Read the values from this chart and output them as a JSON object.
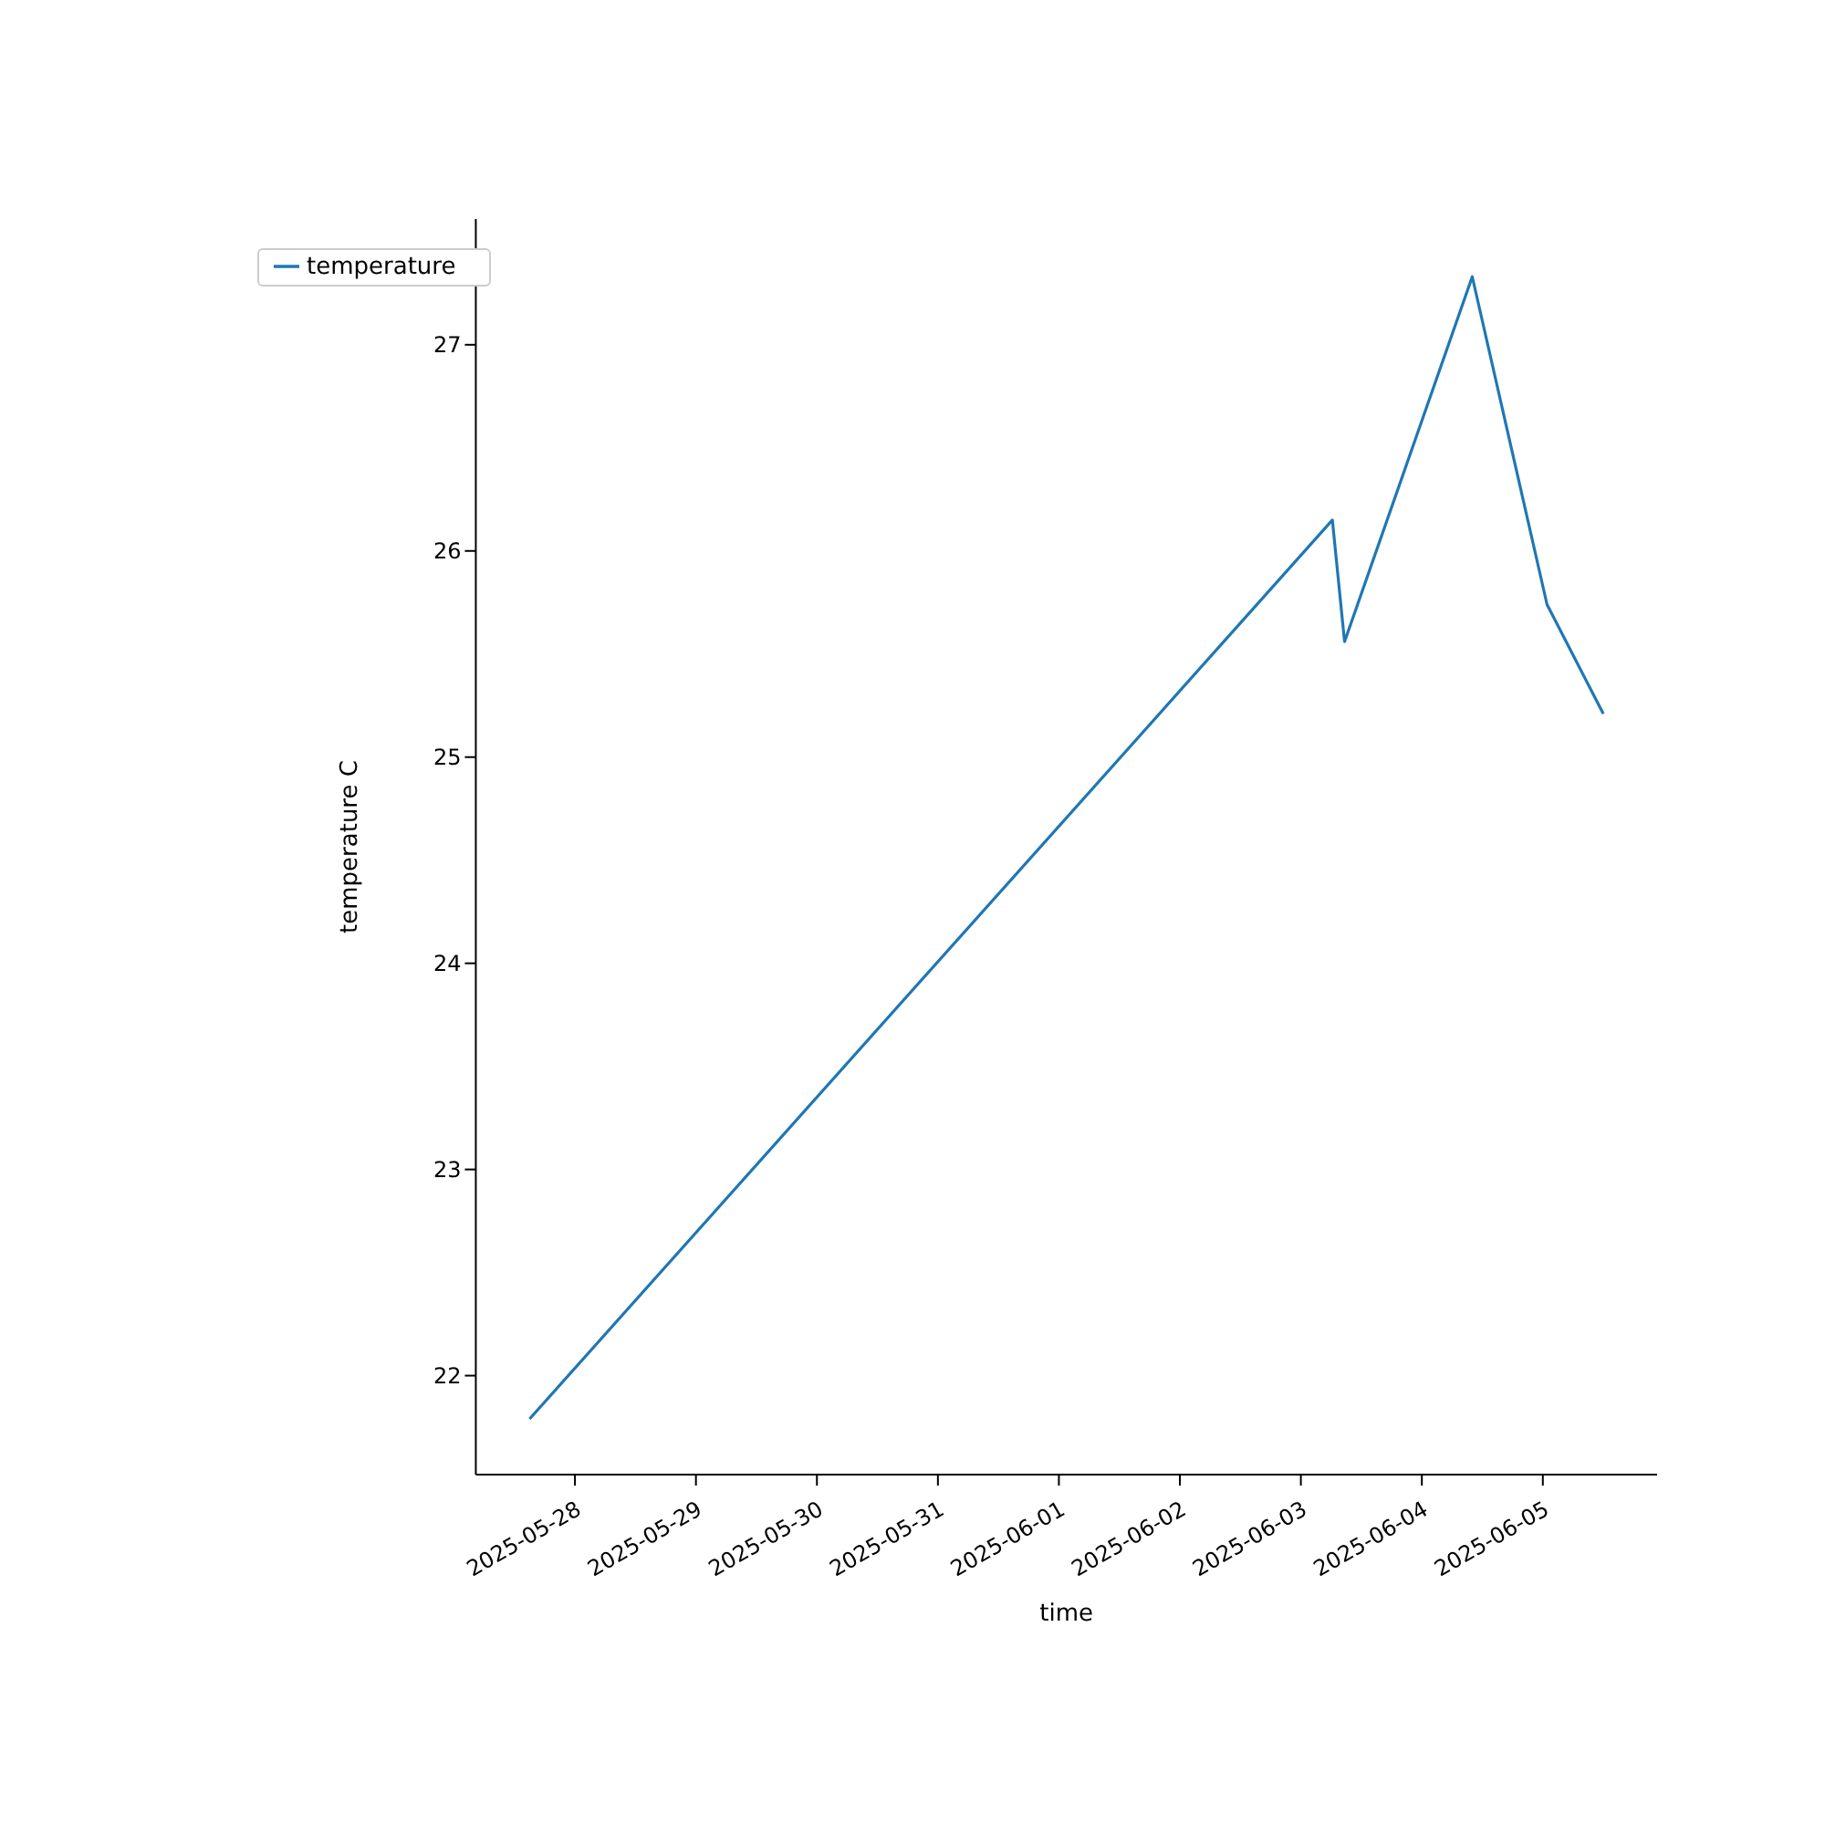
{
  "chart_data": {
    "type": "line",
    "xlabel": "time",
    "ylabel": "temperature C",
    "x": [
      "2025-05-27T15:00",
      "2025-06-03T06:15",
      "2025-06-03T08:40",
      "2025-06-04T10:00",
      "2025-06-05T00:50",
      "2025-06-05T12:00"
    ],
    "series": [
      {
        "name": "temperature",
        "color": "#1f77b4",
        "values": [
          21.79,
          26.15,
          25.56,
          27.33,
          25.74,
          25.21
        ]
      }
    ],
    "xlim": [
      "2025-05-27T04:20",
      "2025-06-05T22:40"
    ],
    "xticks": [
      "2025-05-28",
      "2025-05-29",
      "2025-05-30",
      "2025-05-31",
      "2025-06-01",
      "2025-06-02",
      "2025-06-03",
      "2025-06-04",
      "2025-06-05"
    ],
    "ylim": [
      21.52,
      27.61
    ],
    "yticks": [
      22,
      23,
      24,
      25,
      26,
      27
    ],
    "legend": "top left",
    "marker": "none",
    "line_style": "solid",
    "grid": false
  }
}
